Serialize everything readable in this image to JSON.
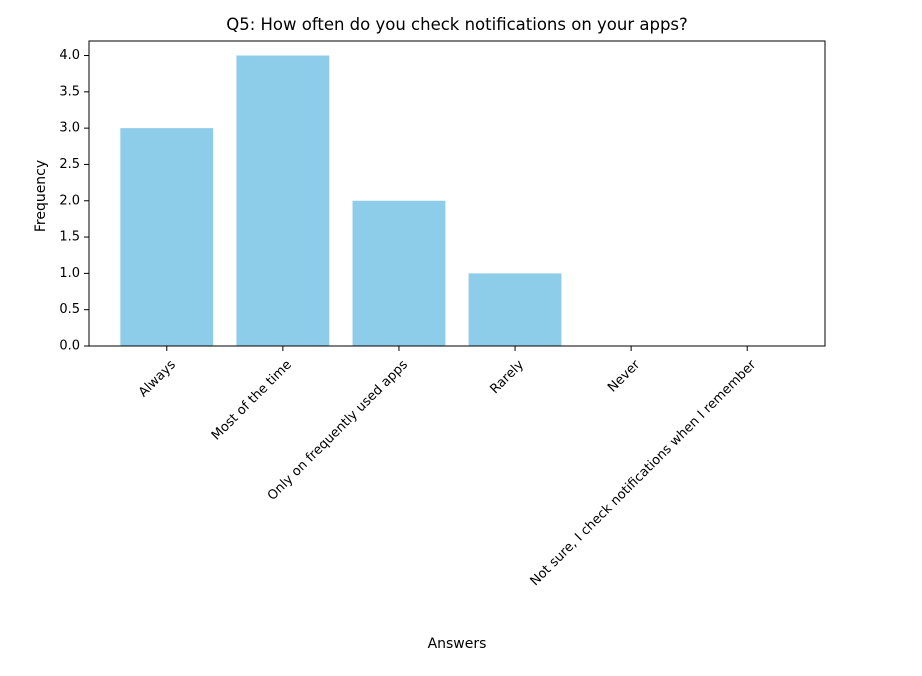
{
  "chart_data": {
    "type": "bar",
    "title": "Q5: How often do you check notifications on your apps?",
    "xlabel": "Answers",
    "ylabel": "Frequency",
    "categories": [
      "Always",
      "Most of the time",
      "Only on frequently used apps",
      "Rarely",
      "Never",
      "Not sure, I check notifications when I remember"
    ],
    "values": [
      3,
      4,
      2,
      1,
      0,
      0
    ],
    "ylim": [
      0,
      4.2
    ],
    "yticks": [
      "0.0",
      "0.5",
      "1.0",
      "1.5",
      "2.0",
      "2.5",
      "3.0",
      "3.5",
      "4.0"
    ],
    "bar_color": "#8ecdea",
    "grid": false,
    "legend": "none"
  }
}
